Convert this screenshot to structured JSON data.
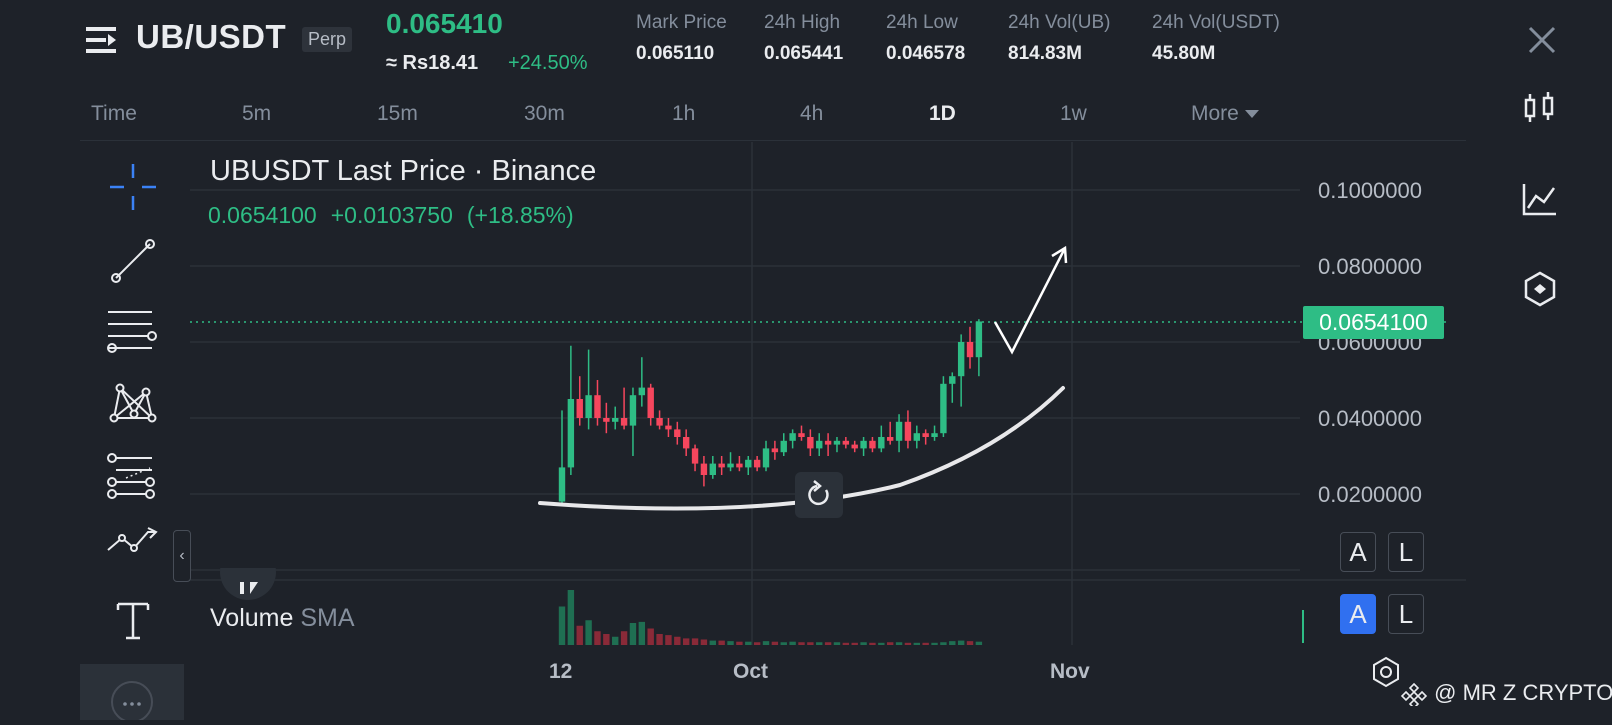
{
  "header": {
    "symbol": "UB/USDT",
    "contract_badge": "Perp",
    "last_price": "0.065410",
    "fiat_price": "≈ Rs18.41",
    "change_pct": "+24.50%",
    "stats": [
      {
        "label": "Mark Price",
        "value": "0.065110"
      },
      {
        "label": "24h High",
        "value": "0.065441"
      },
      {
        "label": "24h Low",
        "value": "0.046578"
      },
      {
        "label": "24h Vol(UB)",
        "value": "814.83M"
      },
      {
        "label": "24h Vol(USDT)",
        "value": "45.80M"
      }
    ]
  },
  "timeframes": [
    {
      "label": "Time"
    },
    {
      "label": "5m"
    },
    {
      "label": "15m"
    },
    {
      "label": "30m"
    },
    {
      "label": "1h"
    },
    {
      "label": "4h"
    },
    {
      "label": "1D",
      "active": true
    },
    {
      "label": "1w"
    },
    {
      "label": "More"
    }
  ],
  "chart": {
    "title": "UBUSDT Last Price · Binance",
    "ohlc_price": "0.0654100",
    "ohlc_change": "+0.0103750",
    "ohlc_change_pct": "(+18.85%)",
    "current_price_tag": "0.0654100",
    "y_ticks": [
      "0.1000000",
      "0.0800000",
      "0.0600000",
      "0.0400000",
      "0.0200000"
    ],
    "x_ticks": [
      "12",
      "Oct",
      "Nov"
    ],
    "volume_label": "Volume",
    "volume_indicator": "SMA",
    "scale_buttons": [
      {
        "label": "A"
      },
      {
        "label": "L"
      },
      {
        "label": "A"
      },
      {
        "label": "L"
      }
    ]
  },
  "chart_data": {
    "type": "candlestick",
    "ylim": [
      0.0,
      0.12
    ],
    "up_color": "#2ebd85",
    "down_color": "#f6465d",
    "candles": [
      {
        "o": 0.018,
        "h": 0.042,
        "l": 0.0175,
        "c": 0.027
      },
      {
        "o": 0.027,
        "h": 0.059,
        "l": 0.025,
        "c": 0.045
      },
      {
        "o": 0.045,
        "h": 0.051,
        "l": 0.038,
        "c": 0.04
      },
      {
        "o": 0.04,
        "h": 0.058,
        "l": 0.037,
        "c": 0.046
      },
      {
        "o": 0.046,
        "h": 0.05,
        "l": 0.038,
        "c": 0.04
      },
      {
        "o": 0.04,
        "h": 0.044,
        "l": 0.036,
        "c": 0.039
      },
      {
        "o": 0.039,
        "h": 0.043,
        "l": 0.037,
        "c": 0.04
      },
      {
        "o": 0.04,
        "h": 0.048,
        "l": 0.037,
        "c": 0.038
      },
      {
        "o": 0.038,
        "h": 0.048,
        "l": 0.03,
        "c": 0.046
      },
      {
        "o": 0.046,
        "h": 0.056,
        "l": 0.043,
        "c": 0.048
      },
      {
        "o": 0.048,
        "h": 0.049,
        "l": 0.038,
        "c": 0.04
      },
      {
        "o": 0.04,
        "h": 0.042,
        "l": 0.037,
        "c": 0.038
      },
      {
        "o": 0.038,
        "h": 0.04,
        "l": 0.035,
        "c": 0.037
      },
      {
        "o": 0.037,
        "h": 0.039,
        "l": 0.033,
        "c": 0.035
      },
      {
        "o": 0.035,
        "h": 0.037,
        "l": 0.03,
        "c": 0.032
      },
      {
        "o": 0.032,
        "h": 0.033,
        "l": 0.026,
        "c": 0.028
      },
      {
        "o": 0.028,
        "h": 0.03,
        "l": 0.022,
        "c": 0.025
      },
      {
        "o": 0.025,
        "h": 0.03,
        "l": 0.024,
        "c": 0.028
      },
      {
        "o": 0.028,
        "h": 0.03,
        "l": 0.025,
        "c": 0.027
      },
      {
        "o": 0.027,
        "h": 0.031,
        "l": 0.026,
        "c": 0.028
      },
      {
        "o": 0.028,
        "h": 0.03,
        "l": 0.026,
        "c": 0.027
      },
      {
        "o": 0.027,
        "h": 0.03,
        "l": 0.025,
        "c": 0.029
      },
      {
        "o": 0.029,
        "h": 0.03,
        "l": 0.026,
        "c": 0.027
      },
      {
        "o": 0.027,
        "h": 0.034,
        "l": 0.026,
        "c": 0.032
      },
      {
        "o": 0.032,
        "h": 0.034,
        "l": 0.029,
        "c": 0.031
      },
      {
        "o": 0.031,
        "h": 0.036,
        "l": 0.03,
        "c": 0.034
      },
      {
        "o": 0.034,
        "h": 0.037,
        "l": 0.032,
        "c": 0.036
      },
      {
        "o": 0.036,
        "h": 0.038,
        "l": 0.034,
        "c": 0.035
      },
      {
        "o": 0.035,
        "h": 0.037,
        "l": 0.03,
        "c": 0.032
      },
      {
        "o": 0.032,
        "h": 0.036,
        "l": 0.03,
        "c": 0.034
      },
      {
        "o": 0.034,
        "h": 0.036,
        "l": 0.03,
        "c": 0.033
      },
      {
        "o": 0.033,
        "h": 0.035,
        "l": 0.031,
        "c": 0.034
      },
      {
        "o": 0.034,
        "h": 0.035,
        "l": 0.032,
        "c": 0.033
      },
      {
        "o": 0.033,
        "h": 0.034,
        "l": 0.031,
        "c": 0.032
      },
      {
        "o": 0.032,
        "h": 0.035,
        "l": 0.03,
        "c": 0.034
      },
      {
        "o": 0.034,
        "h": 0.035,
        "l": 0.031,
        "c": 0.032
      },
      {
        "o": 0.032,
        "h": 0.038,
        "l": 0.031,
        "c": 0.035
      },
      {
        "o": 0.035,
        "h": 0.039,
        "l": 0.033,
        "c": 0.034
      },
      {
        "o": 0.034,
        "h": 0.041,
        "l": 0.031,
        "c": 0.039
      },
      {
        "o": 0.039,
        "h": 0.042,
        "l": 0.032,
        "c": 0.034
      },
      {
        "o": 0.034,
        "h": 0.038,
        "l": 0.032,
        "c": 0.036
      },
      {
        "o": 0.036,
        "h": 0.037,
        "l": 0.033,
        "c": 0.035
      },
      {
        "o": 0.035,
        "h": 0.038,
        "l": 0.034,
        "c": 0.036
      },
      {
        "o": 0.036,
        "h": 0.051,
        "l": 0.035,
        "c": 0.049
      },
      {
        "o": 0.049,
        "h": 0.052,
        "l": 0.044,
        "c": 0.051
      },
      {
        "o": 0.051,
        "h": 0.062,
        "l": 0.043,
        "c": 0.06
      },
      {
        "o": 0.06,
        "h": 0.064,
        "l": 0.053,
        "c": 0.056
      },
      {
        "o": 0.056,
        "h": 0.066,
        "l": 0.051,
        "c": 0.0654
      }
    ],
    "volume": [
      0.7,
      1.0,
      0.35,
      0.45,
      0.25,
      0.2,
      0.15,
      0.25,
      0.4,
      0.42,
      0.3,
      0.2,
      0.18,
      0.15,
      0.12,
      0.12,
      0.1,
      0.08,
      0.08,
      0.07,
      0.06,
      0.06,
      0.05,
      0.07,
      0.06,
      0.05,
      0.06,
      0.05,
      0.05,
      0.05,
      0.05,
      0.05,
      0.04,
      0.04,
      0.05,
      0.04,
      0.04,
      0.05,
      0.05,
      0.04,
      0.04,
      0.04,
      0.04,
      0.05,
      0.07,
      0.08,
      0.07,
      0.06
    ]
  },
  "watermark": "@ MR Z CRYPTO"
}
